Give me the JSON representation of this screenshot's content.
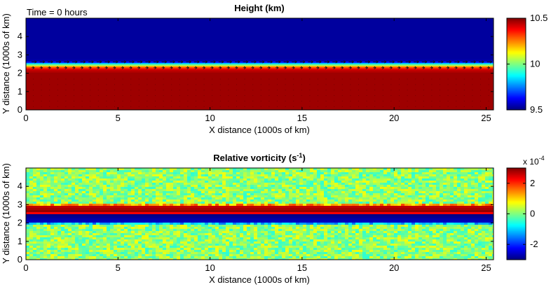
{
  "annotation": "Time = 0 hours",
  "chart_data": [
    {
      "type": "heatmap",
      "title": "Height (km)",
      "xlabel": "X distance (1000s of km)",
      "ylabel": "Y distance (1000s of km)",
      "xlim": [
        0,
        25.4
      ],
      "ylim": [
        0,
        5
      ],
      "xticks": [
        0,
        5,
        10,
        15,
        20,
        25
      ],
      "yticks": [
        0,
        1,
        2,
        3,
        4
      ],
      "colorbar": {
        "clim": [
          9.5,
          10.5
        ],
        "ticks": [
          "9.5",
          "10",
          "10.5"
        ]
      },
      "field_profile_y": [
        {
          "y": 0.0,
          "value": 10.47
        },
        {
          "y": 2.0,
          "value": 10.47
        },
        {
          "y": 2.2,
          "value": 10.42
        },
        {
          "y": 2.35,
          "value": 10.25
        },
        {
          "y": 2.45,
          "value": 10.0
        },
        {
          "y": 2.55,
          "value": 9.75
        },
        {
          "y": 2.65,
          "value": 9.55
        },
        {
          "y": 2.8,
          "value": 9.53
        },
        {
          "y": 5.0,
          "value": 9.53
        }
      ],
      "overlay": "wind vector arrows (eastward jet near y = 2.5)",
      "grid": false
    },
    {
      "type": "heatmap",
      "title": "Relative vorticity (s",
      "title_sup": "-1",
      "title_end": ")",
      "xlabel": "X distance (1000s of km)",
      "ylabel": "Y distance (1000s of km)",
      "xlim": [
        0,
        25.4
      ],
      "ylim": [
        0,
        5
      ],
      "xticks": [
        0,
        5,
        10,
        15,
        20,
        25
      ],
      "yticks": [
        0,
        1,
        2,
        3,
        4
      ],
      "colorbar": {
        "clim": [
          -3,
          3
        ],
        "ticks": [
          "-2",
          "0",
          "2"
        ],
        "multiplier": "x 10",
        "multiplier_exp": "-4"
      },
      "field_profile_y": [
        {
          "y": 0.0,
          "value": 0.1
        },
        {
          "y": 1.9,
          "value": 0.1
        },
        {
          "y": 1.95,
          "value": -0.8
        },
        {
          "y": 2.05,
          "value": -2.6
        },
        {
          "y": 2.45,
          "value": -3.0
        },
        {
          "y": 2.55,
          "value": 3.0
        },
        {
          "y": 2.9,
          "value": 2.6
        },
        {
          "y": 3.0,
          "value": 1.2
        },
        {
          "y": 3.05,
          "value": 0.1
        },
        {
          "y": 5.0,
          "value": 0.1
        }
      ],
      "noise_amplitude": 0.6,
      "grid": false
    }
  ]
}
